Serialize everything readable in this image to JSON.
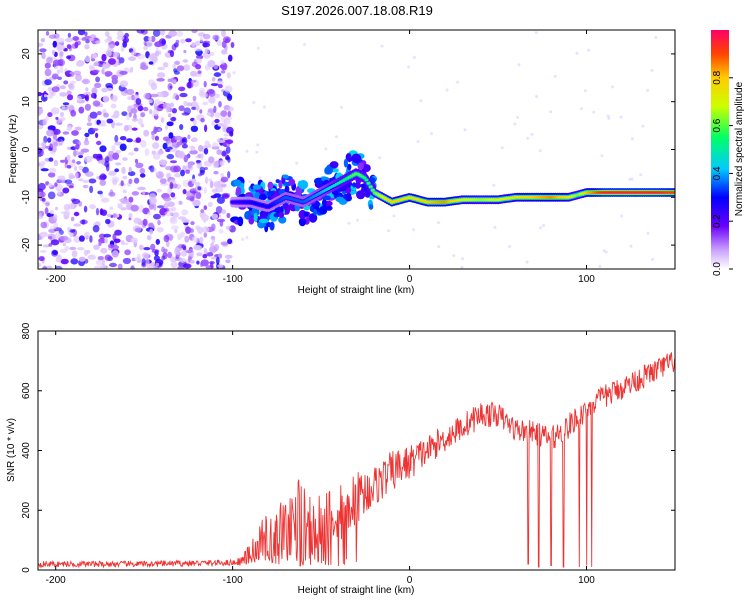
{
  "figure_title": "S197.2026.007.18.08.R19",
  "chart_data": [
    {
      "type": "heatmap",
      "title": "S197.2026.007.18.08.R19",
      "xlabel": "Height of straight line (km)",
      "ylabel": "Frequency (Hz)",
      "xlim": [
        -210,
        150
      ],
      "ylim": [
        -25,
        25
      ],
      "xticks": [
        -200,
        -100,
        0,
        100
      ],
      "yticks": [
        -20,
        -10,
        0,
        10,
        20
      ],
      "noise_region_x": [
        -210,
        -100
      ],
      "ridge": {
        "x": [
          -100,
          -90,
          -80,
          -70,
          -60,
          -50,
          -40,
          -30,
          -25,
          -20,
          -15,
          -10,
          0,
          10,
          20,
          30,
          40,
          50,
          60,
          70,
          80,
          90,
          95,
          100,
          110,
          120,
          130,
          140,
          150
        ],
        "freq": [
          -11,
          -11,
          -12,
          -10,
          -11,
          -9,
          -7,
          -5,
          -6,
          -9,
          -10,
          -11,
          -10,
          -11,
          -11,
          -10.5,
          -10.5,
          -10.5,
          -10,
          -10,
          -10,
          -10,
          -9.5,
          -9,
          -9,
          -9,
          -9,
          -9,
          -9
        ],
        "amplitude": [
          0.25,
          0.3,
          0.3,
          0.35,
          0.35,
          0.4,
          0.5,
          0.6,
          0.55,
          0.6,
          0.7,
          0.8,
          0.75,
          0.8,
          0.85,
          0.7,
          0.65,
          0.7,
          0.75,
          0.8,
          0.85,
          0.75,
          0.6,
          0.8,
          0.95,
          0.95,
          0.95,
          0.95,
          0.9
        ]
      },
      "colorbar": {
        "label": "Normalized spectral amplitude",
        "range": [
          0,
          1
        ],
        "ticks": [
          0.0,
          0.2,
          0.4,
          0.6,
          0.8
        ],
        "tick_labels": [
          "0.0",
          "0.2",
          "0.4",
          "0.6",
          "0.8"
        ]
      }
    },
    {
      "type": "line",
      "xlabel": "Height of straight line (km)",
      "ylabel": "SNR (10 * v/v)",
      "xlim": [
        -210,
        150
      ],
      "ylim": [
        0,
        800
      ],
      "xticks": [
        -200,
        -100,
        0,
        100
      ],
      "yticks": [
        0,
        200,
        400,
        600,
        800
      ],
      "series": [
        {
          "name": "SNR",
          "color": "#ee3333",
          "envelope_x": [
            -210,
            -150,
            -100,
            -95,
            -90,
            -85,
            -80,
            -75,
            -70,
            -65,
            -60,
            -55,
            -50,
            -45,
            -40,
            -30,
            -20,
            -10,
            0,
            10,
            20,
            30,
            40,
            50,
            60,
            70,
            80,
            90,
            100,
            110,
            120,
            130,
            140,
            150
          ],
          "envelope_y": [
            20,
            20,
            25,
            30,
            55,
            90,
            110,
            120,
            150,
            170,
            220,
            150,
            160,
            180,
            200,
            240,
            280,
            330,
            360,
            400,
            440,
            480,
            520,
            520,
            470,
            460,
            440,
            480,
            540,
            580,
            610,
            640,
            670,
            700
          ],
          "noise_amplitude": [
            10,
            10,
            10,
            15,
            40,
            70,
            80,
            90,
            100,
            110,
            130,
            110,
            110,
            110,
            110,
            90,
            70,
            70,
            60,
            50,
            45,
            45,
            45,
            40,
            40,
            40,
            40,
            45,
            40,
            40,
            40,
            40,
            40,
            40
          ],
          "dropouts": [
            {
              "x": 67,
              "y": 20
            },
            {
              "x": 73,
              "y": 10
            },
            {
              "x": 80,
              "y": 15
            },
            {
              "x": 87,
              "y": 10
            },
            {
              "x": 96,
              "y": 10
            },
            {
              "x": 100,
              "y": 15
            },
            {
              "x": 103,
              "y": 10
            }
          ]
        }
      ]
    }
  ]
}
